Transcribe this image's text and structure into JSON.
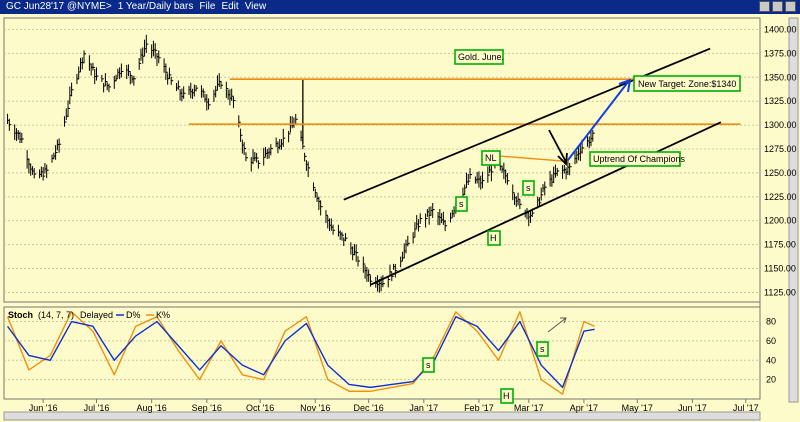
{
  "window": {
    "title": "GC Jun28'17 @NYME>",
    "period": "1 Year/Daily bars",
    "menu": [
      "File",
      "Edit",
      "View"
    ]
  },
  "chart_data": [
    {
      "type": "line",
      "subtype": "ohlc-bars",
      "title": "Gold. June.",
      "y_ticks": [
        1125,
        1150,
        1175,
        1200,
        1225,
        1250,
        1275,
        1300,
        1325,
        1350,
        1375,
        1400
      ],
      "ylim": [
        1115,
        1412
      ],
      "x_ticks": [
        "Jun '16",
        "Jul '16",
        "Aug '16",
        "Sep '16",
        "Oct '16",
        "Nov '16",
        "Dec '16",
        "Jan '17",
        "Feb '17",
        "Mar '17",
        "Apr '17",
        "May '17",
        "Jun '17",
        "Jul '17"
      ],
      "series": [
        {
          "name": "",
          "x": [
            "2016-05-26",
            "2016-06-03",
            "2016-06-10",
            "2016-06-17",
            "2016-06-24",
            "2016-07-01",
            "2016-07-08",
            "2016-07-15",
            "2016-07-22",
            "2016-07-29",
            "2016-08-05",
            "2016-08-12",
            "2016-08-19",
            "2016-08-26",
            "2016-09-02",
            "2016-09-09",
            "2016-09-16",
            "2016-09-23",
            "2016-09-30",
            "2016-10-07",
            "2016-10-14",
            "2016-10-21",
            "2016-10-28",
            "2016-11-04",
            "2016-11-11",
            "2016-11-18",
            "2016-11-25",
            "2016-12-02",
            "2016-12-09",
            "2016-12-16",
            "2016-12-23",
            "2016-12-30",
            "2017-01-06",
            "2017-01-13",
            "2017-01-20",
            "2017-01-27",
            "2017-02-03",
            "2017-02-10",
            "2017-02-17",
            "2017-02-24",
            "2017-03-03",
            "2017-03-10",
            "2017-03-17",
            "2017-03-24",
            "2017-03-31",
            "2017-04-07",
            "2017-04-13",
            "2017-04-21"
          ],
          "values": [
            1305,
            1285,
            1245,
            1252,
            1280,
            1335,
            1375,
            1350,
            1340,
            1360,
            1350,
            1385,
            1370,
            1345,
            1330,
            1340,
            1325,
            1345,
            1325,
            1265,
            1262,
            1275,
            1285,
            1305,
            1255,
            1215,
            1190,
            1180,
            1160,
            1140,
            1135,
            1150,
            1175,
            1200,
            1210,
            1195,
            1220,
            1245,
            1240,
            1260,
            1245,
            1215,
            1205,
            1235,
            1250,
            1255,
            1275,
            1290
          ]
        }
      ],
      "annotations": {
        "title_box": "Gold. June.",
        "target": "New Target: Zone:$1340",
        "uptrend": "Uptrend Of Champions",
        "nl": "NL",
        "s1": "s",
        "s2": "s",
        "h": "H"
      },
      "lines": {
        "resistance_high": 1348,
        "resistance_mid": 1301,
        "channel_lower": [
          [
            "2016-12-16",
            1133
          ],
          [
            "2017-07-01",
            1303
          ]
        ],
        "channel_upper": [
          [
            "2016-12-01",
            1222
          ],
          [
            "2017-06-25",
            1380
          ]
        ],
        "neckline": [
          [
            "2017-02-24",
            1268
          ],
          [
            "2017-04-06",
            1262
          ]
        ]
      },
      "xlim": [
        "2016-05-24",
        "2017-07-23"
      ]
    },
    {
      "type": "line",
      "title": "Stoch",
      "params": "(14, 7, 7)",
      "mode": "Delayed",
      "legend": [
        "D%",
        "K%"
      ],
      "y_ticks": [
        20,
        40,
        60,
        80
      ],
      "ylim": [
        0,
        95
      ],
      "series": [
        {
          "name": "D%",
          "color": "#1030d0",
          "x": [
            "2016-05-26",
            "2016-06-07",
            "2016-06-19",
            "2016-07-01",
            "2016-07-13",
            "2016-07-25",
            "2016-08-06",
            "2016-08-18",
            "2016-08-30",
            "2016-09-11",
            "2016-09-23",
            "2016-10-05",
            "2016-10-17",
            "2016-10-29",
            "2016-11-10",
            "2016-11-22",
            "2016-12-04",
            "2016-12-16",
            "2016-12-28",
            "2017-01-09",
            "2017-01-21",
            "2017-02-02",
            "2017-02-14",
            "2017-02-26",
            "2017-03-10",
            "2017-03-22",
            "2017-04-03",
            "2017-04-15",
            "2017-04-21"
          ],
          "values": [
            75,
            45,
            40,
            80,
            75,
            40,
            65,
            80,
            55,
            30,
            55,
            35,
            25,
            60,
            78,
            35,
            15,
            12,
            15,
            18,
            40,
            85,
            75,
            50,
            80,
            35,
            12,
            70,
            72
          ]
        },
        {
          "name": "K%",
          "color": "#f09010",
          "x": [
            "2016-05-26",
            "2016-06-07",
            "2016-06-19",
            "2016-07-01",
            "2016-07-13",
            "2016-07-25",
            "2016-08-06",
            "2016-08-18",
            "2016-08-30",
            "2016-09-11",
            "2016-09-23",
            "2016-10-05",
            "2016-10-17",
            "2016-10-29",
            "2016-11-10",
            "2016-11-22",
            "2016-12-04",
            "2016-12-16",
            "2016-12-28",
            "2017-01-09",
            "2017-01-21",
            "2017-02-02",
            "2017-02-14",
            "2017-02-26",
            "2017-03-10",
            "2017-03-22",
            "2017-04-03",
            "2017-04-15",
            "2017-04-21"
          ],
          "values": [
            85,
            30,
            45,
            90,
            70,
            25,
            75,
            85,
            50,
            20,
            60,
            25,
            20,
            70,
            85,
            20,
            8,
            8,
            12,
            16,
            45,
            90,
            70,
            40,
            90,
            20,
            5,
            80,
            75
          ]
        }
      ],
      "annotations": {
        "s1": "s",
        "s2": "s",
        "h": "H"
      }
    }
  ]
}
